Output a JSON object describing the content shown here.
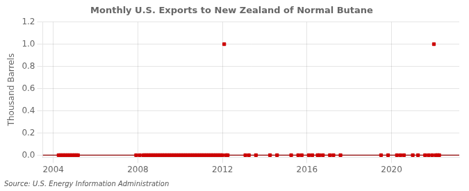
{
  "chart_data": {
    "type": "scatter",
    "title": "Monthly U.S. Exports to New Zealand of Normal Butane",
    "ylabel": "Thousand Barrels",
    "annotations": [
      "Source: U.S. Energy Information Administration"
    ],
    "xlim": [
      2003.5,
      2023.2
    ],
    "ylim": [
      -0.02,
      1.2
    ],
    "xticks": [
      2004,
      2008,
      2012,
      2016,
      2020
    ],
    "yticks": [
      {
        "value": 0.0,
        "label": "0.0"
      },
      0.2,
      0.4,
      0.6,
      0.8,
      {
        "value": 1.0,
        "label": "1.0"
      },
      1.2
    ],
    "grid": true,
    "series": [
      {
        "type": "line",
        "color": "#8b0000",
        "line_style": "solid",
        "x": [
          2003.5,
          2023.2
        ],
        "values": [
          0.0,
          0.0
        ]
      },
      {
        "type": "scatter",
        "color": "#cc0000",
        "marker": "square",
        "x": [
          2004.25,
          2004.333,
          2004.417,
          2004.5,
          2004.583,
          2004.667,
          2004.75,
          2004.833,
          2004.917,
          2005.0,
          2005.083,
          2005.167,
          2007.917,
          2008.083,
          2008.25,
          2008.333,
          2008.417,
          2008.5,
          2008.583,
          2008.667,
          2008.75,
          2008.833,
          2008.917,
          2009.0,
          2009.083,
          2009.167,
          2009.25,
          2009.333,
          2009.417,
          2009.5,
          2009.583,
          2009.667,
          2009.75,
          2009.833,
          2009.917,
          2010.0,
          2010.083,
          2010.167,
          2010.25,
          2010.333,
          2010.417,
          2010.5,
          2010.583,
          2010.667,
          2010.75,
          2010.833,
          2010.917,
          2011.0,
          2011.083,
          2011.167,
          2011.25,
          2011.333,
          2011.417,
          2011.5,
          2011.583,
          2011.667,
          2011.75,
          2011.833,
          2011.917,
          2012.0,
          2012.167,
          2012.25,
          2013.083,
          2013.25,
          2013.583,
          2014.25,
          2014.583,
          2015.25,
          2015.583,
          2015.75,
          2016.083,
          2016.25,
          2016.5,
          2016.583,
          2016.75,
          2017.083,
          2017.25,
          2017.583,
          2019.5,
          2019.833,
          2020.25,
          2020.417,
          2020.583,
          2021.0,
          2021.25,
          2021.583,
          2021.75,
          2021.917,
          2022.083,
          2022.167,
          2022.25
        ],
        "values": [
          0.0,
          0.0,
          0.0,
          0.0,
          0.0,
          0.0,
          0.0,
          0.0,
          0.0,
          0.0,
          0.0,
          0.0,
          0.0,
          0.0,
          0.0,
          0.0,
          0.0,
          0.0,
          0.0,
          0.0,
          0.0,
          0.0,
          0.0,
          0.0,
          0.0,
          0.0,
          0.0,
          0.0,
          0.0,
          0.0,
          0.0,
          0.0,
          0.0,
          0.0,
          0.0,
          0.0,
          0.0,
          0.0,
          0.0,
          0.0,
          0.0,
          0.0,
          0.0,
          0.0,
          0.0,
          0.0,
          0.0,
          0.0,
          0.0,
          0.0,
          0.0,
          0.0,
          0.0,
          0.0,
          0.0,
          0.0,
          0.0,
          0.0,
          0.0,
          0.0,
          0.0,
          0.0,
          0.0,
          0.0,
          0.0,
          0.0,
          0.0,
          0.0,
          0.0,
          0.0,
          0.0,
          0.0,
          0.0,
          0.0,
          0.0,
          0.0,
          0.0,
          0.0,
          0.0,
          0.0,
          0.0,
          0.0,
          0.0,
          0.0,
          0.0,
          0.0,
          0.0,
          0.0,
          0.0,
          0.0,
          0.0
        ]
      },
      {
        "type": "scatter",
        "color": "#cc0000",
        "marker": "square",
        "x": [
          2012.083,
          2022.0
        ],
        "values": [
          1.0,
          1.0
        ]
      }
    ]
  }
}
